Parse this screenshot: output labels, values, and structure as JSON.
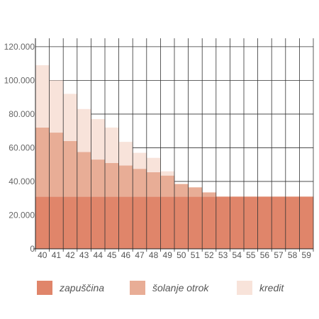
{
  "chart_data": {
    "type": "bar",
    "stacked": true,
    "categories": [
      "40",
      "41",
      "42",
      "43",
      "44",
      "45",
      "46",
      "47",
      "48",
      "49",
      "50",
      "51",
      "52",
      "53",
      "54",
      "55",
      "56",
      "57",
      "58",
      "59"
    ],
    "series": [
      {
        "name": "zapuščina",
        "color": "#e0856a",
        "values": [
          31000,
          31000,
          31000,
          31000,
          31000,
          31000,
          31000,
          31000,
          31000,
          31000,
          31000,
          31000,
          31000,
          31000,
          31000,
          31000,
          31000,
          31000,
          31000,
          31000
        ]
      },
      {
        "name": "šolanje otrok",
        "color": "#e8ad96",
        "values": [
          41000,
          38000,
          33000,
          26500,
          22000,
          20000,
          18500,
          16500,
          14500,
          12500,
          7500,
          5500,
          2500,
          0,
          0,
          0,
          0,
          0,
          0,
          0
        ]
      },
      {
        "name": "kredit",
        "color": "#f8e3da",
        "values": [
          37000,
          31000,
          28000,
          25500,
          24000,
          21000,
          14000,
          9500,
          8500,
          2500,
          0,
          0,
          0,
          0,
          0,
          0,
          0,
          0,
          0,
          0
        ]
      }
    ],
    "ylim": [
      0,
      125000
    ],
    "yticks": [
      0,
      20000,
      40000,
      60000,
      80000,
      100000,
      120000
    ],
    "ytick_labels": [
      "0",
      "20.000",
      "40.000",
      "60.000",
      "80.000",
      "100.000",
      "120.000"
    ],
    "grid": true,
    "legend_position": "bottom"
  }
}
